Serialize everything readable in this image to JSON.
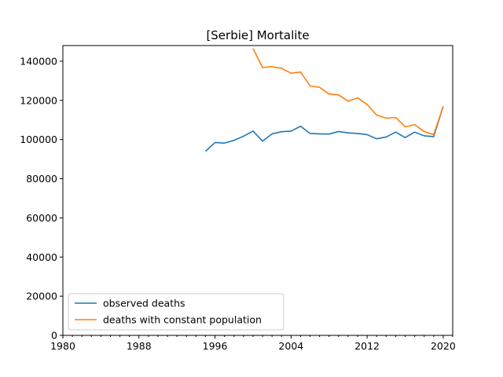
{
  "chart_data": {
    "type": "line",
    "title": "[Serbie] Mortalite",
    "xlabel": "",
    "ylabel": "",
    "xlim": [
      1980,
      2021
    ],
    "ylim": [
      0,
      148000
    ],
    "x_major_ticks": [
      1980,
      1988,
      1996,
      2004,
      2012,
      2020
    ],
    "x_minor_step": 1,
    "y_ticks": [
      0,
      20000,
      40000,
      60000,
      80000,
      100000,
      120000,
      140000
    ],
    "grid": false,
    "legend_position": "lower-left",
    "series": [
      {
        "name": "observed deaths",
        "color": "#1f77b4",
        "x": [
          1995,
          1996,
          1997,
          1998,
          1999,
          2000,
          2001,
          2002,
          2003,
          2004,
          2005,
          2006,
          2007,
          2008,
          2009,
          2010,
          2011,
          2012,
          2013,
          2014,
          2015,
          2016,
          2017,
          2018,
          2019,
          2020
        ],
        "values": [
          94000,
          98500,
          98200,
          99600,
          101700,
          104300,
          99200,
          102900,
          104000,
          104300,
          106800,
          103100,
          102900,
          102800,
          104100,
          103400,
          103100,
          102500,
          100400,
          101300,
          103800,
          101000,
          103800,
          101900,
          101500,
          116900
        ]
      },
      {
        "name": "deaths with constant population",
        "color": "#ff7f0e",
        "x": [
          2000,
          2001,
          2002,
          2003,
          2004,
          2005,
          2006,
          2007,
          2008,
          2009,
          2010,
          2011,
          2012,
          2013,
          2014,
          2015,
          2016,
          2017,
          2018,
          2019,
          2020
        ],
        "values": [
          146500,
          136800,
          137200,
          136400,
          133900,
          134500,
          127400,
          126700,
          123200,
          122800,
          119600,
          121300,
          117900,
          112500,
          110900,
          111300,
          106500,
          107600,
          104100,
          102500,
          116800
        ]
      }
    ]
  }
}
